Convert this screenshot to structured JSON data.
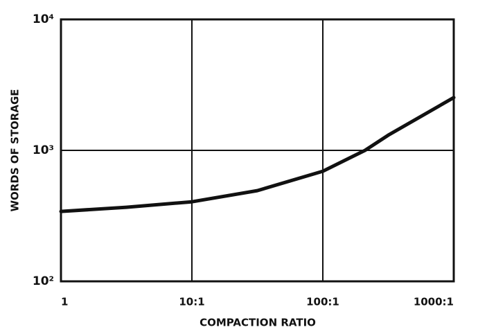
{
  "chart_data": {
    "type": "line",
    "xlabel": "COMPACTION RATIO",
    "ylabel": "WORDS OF STORAGE",
    "xscale": "log",
    "yscale": "log",
    "x": [
      1,
      3.16,
      10,
      31.6,
      100,
      210,
      316,
      1000
    ],
    "series": [
      {
        "name": "storage",
        "color": "#111111",
        "values": [
          342,
          368,
          405,
          493,
          693,
          1000,
          1306,
          2530
        ]
      }
    ],
    "xlim": [
      1,
      1000
    ],
    "xticks": [
      1,
      {
        "value": 10,
        "label": "10:1"
      },
      {
        "value": 100,
        "label": "100:1"
      },
      {
        "value": 1000,
        "label": "1000:1"
      }
    ],
    "ylim": [
      100,
      10000
    ],
    "yticks": [
      {
        "value": 100,
        "label": "10²"
      },
      {
        "value": 1000,
        "label": "10³"
      },
      {
        "value": 10000,
        "label": "10⁴"
      }
    ],
    "grid": true
  }
}
